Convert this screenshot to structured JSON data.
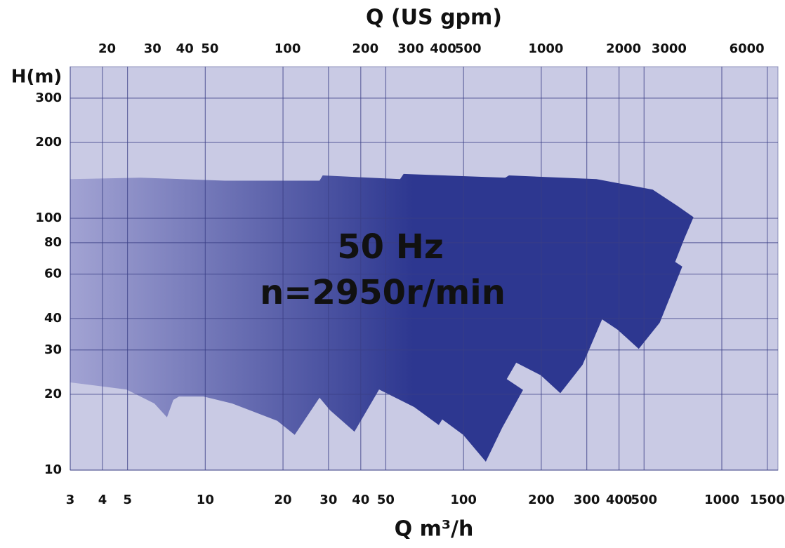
{
  "chart_data": {
    "type": "area",
    "title": "Q (US gpm)",
    "xlabel": "Q m³/h",
    "ylabel": "H(m)",
    "annotations": [
      "50 Hz",
      "n=2950r/min"
    ],
    "xscale": "log",
    "yscale": "log",
    "x2scale": "log",
    "xlim": [
      3,
      1650
    ],
    "xticks": [
      3,
      4,
      5,
      10,
      20,
      30,
      40,
      50,
      100,
      200,
      300,
      400,
      500,
      1000,
      1500
    ],
    "x2lim": [
      14.4,
      7920
    ],
    "x2ticks": [
      20,
      30,
      40,
      50,
      100,
      200,
      300,
      400,
      500,
      1000,
      2000,
      3000,
      6000
    ],
    "ylim": [
      10,
      400
    ],
    "yticks": [
      10,
      20,
      30,
      40,
      60,
      80,
      100,
      200,
      300
    ],
    "grid": true,
    "background": "#c9cae4",
    "grid_color": "#3a3f86",
    "gradient": [
      "#a2a3d3",
      "#2d3790"
    ],
    "region": {
      "x": [
        3,
        5.61,
        11.9,
        27.7,
        28.5,
        56.8,
        58.6,
        145,
        150,
        327,
        540,
        673,
        777,
        716,
        660,
        703,
        575,
        477,
        395,
        344,
        289,
        237,
        199,
        160,
        147,
        170,
        141,
        122,
        99.7,
        82.7,
        80.2,
        64.4,
        47.1,
        37.8,
        30.4,
        27.7,
        22.2,
        19.0,
        12.7,
        9.85,
        7.91,
        7.52,
        7.11,
        6.35,
        4.95,
        3.85,
        3
      ],
      "y": [
        143,
        145,
        141,
        141,
        148,
        143,
        150,
        145,
        148,
        143,
        130,
        112,
        101,
        83,
        67.1,
        64.3,
        38.5,
        30.3,
        36.1,
        39.7,
        26.2,
        20.2,
        23.8,
        26.7,
        23.0,
        20.8,
        14.7,
        10.8,
        13.8,
        15.9,
        15.1,
        17.8,
        20.9,
        14.2,
        17.3,
        19.4,
        13.8,
        15.7,
        18.4,
        19.6,
        19.6,
        19.0,
        16.2,
        18.4,
        20.9,
        21.6,
        22.3
      ]
    }
  }
}
